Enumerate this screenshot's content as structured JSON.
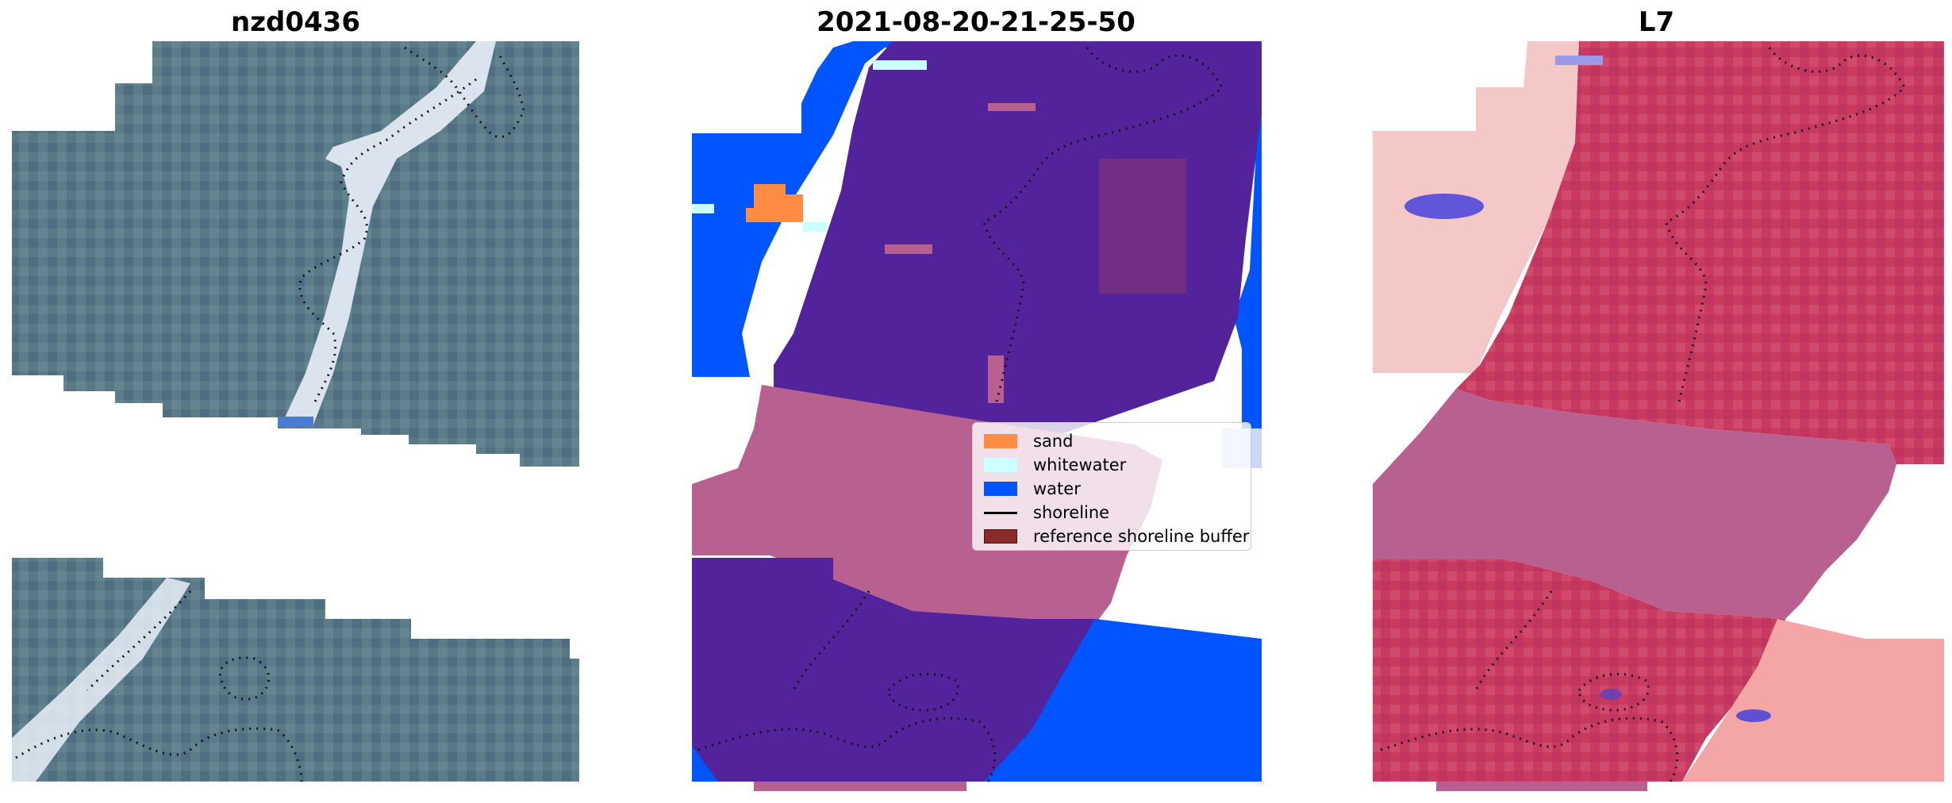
{
  "panels": [
    {
      "title": "nzd0436"
    },
    {
      "title": "2021-08-20-21-25-50"
    },
    {
      "title": "L7"
    }
  ],
  "legend": {
    "items": [
      {
        "label": "sand",
        "color": "#ff8c42"
      },
      {
        "label": "whitewater",
        "color": "#ccffff"
      },
      {
        "label": "water",
        "color": "#0055ff"
      },
      {
        "label": "shoreline",
        "color": "#000000"
      },
      {
        "label": "reference shoreline buffer",
        "color": "#8b2a2a"
      }
    ]
  },
  "colors": {
    "rgb_background": "#5a7a8a",
    "classification_purple": "#52239a",
    "buffer_pink": "#b86090",
    "water_blue": "#0055ff",
    "mndwi_red": "#d02050"
  }
}
